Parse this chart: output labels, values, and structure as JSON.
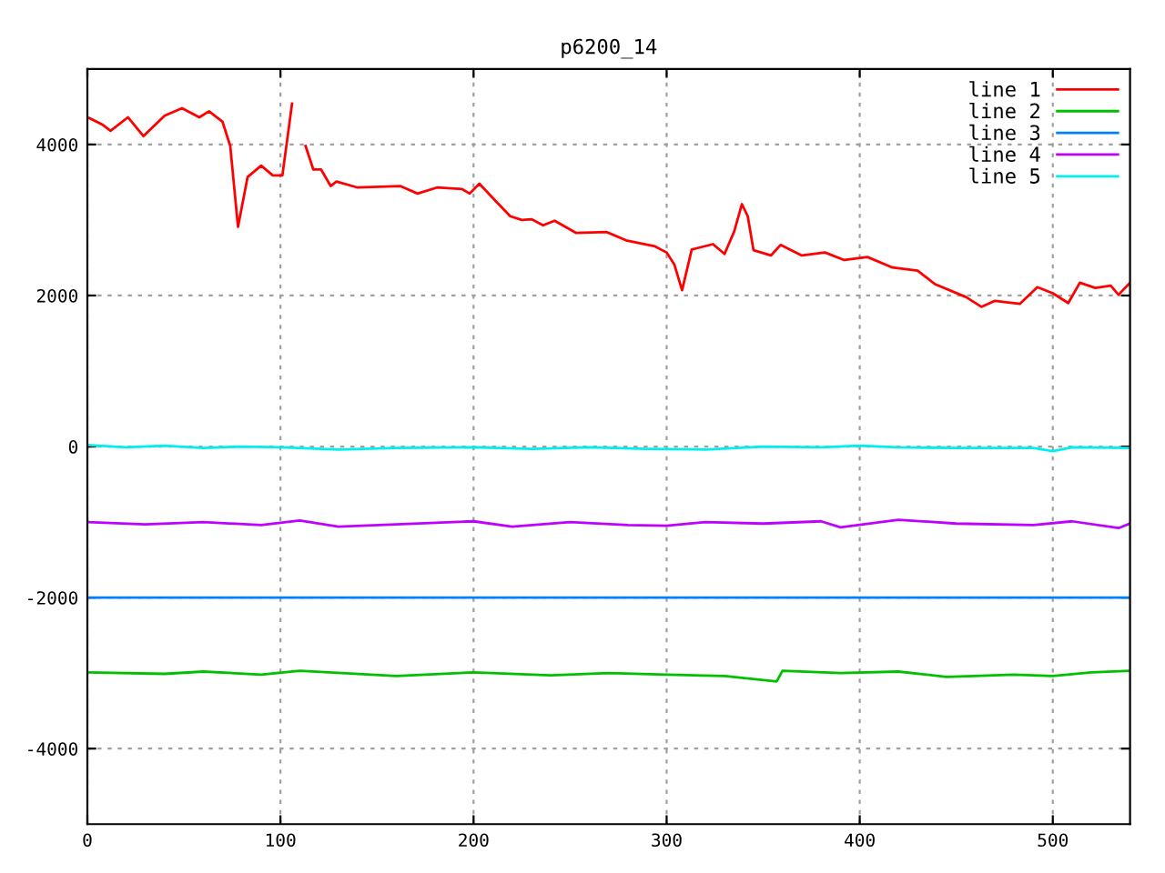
{
  "chart_data": {
    "type": "line",
    "title": "p6200_14",
    "xlim": [
      0,
      540
    ],
    "xticks": [
      0,
      100,
      200,
      300,
      400,
      500
    ],
    "ylim": [
      -5000,
      5000
    ],
    "yticks": [
      -4000,
      -2000,
      0,
      2000,
      4000
    ],
    "grid": true,
    "legend": "top right",
    "line_style": "solid",
    "marker": "none",
    "series": [
      {
        "name": "line 1",
        "color": "#ff0000",
        "x": [
          1,
          8,
          12,
          21,
          29,
          40,
          49,
          58,
          63,
          70,
          74,
          78,
          83,
          90,
          96,
          101,
          106,
          108,
          111,
          113,
          117,
          121,
          126,
          129,
          140,
          162,
          171,
          181,
          194,
          198,
          203,
          213,
          219,
          225,
          230,
          236,
          242,
          253,
          269,
          279,
          294,
          300,
          304,
          308,
          313,
          324,
          330,
          335,
          339,
          342,
          345,
          354,
          359,
          370,
          382,
          392,
          404,
          417,
          430,
          439,
          455,
          463,
          470,
          483,
          492,
          500,
          508,
          514,
          522,
          530,
          534,
          540
        ],
        "values": [
          4350,
          4260,
          4180,
          4360,
          4110,
          4380,
          4480,
          4360,
          4440,
          4300,
          3980,
          2910,
          3570,
          3720,
          3590,
          3590,
          4540,
          null,
          null,
          3980,
          3670,
          3670,
          3450,
          3510,
          3430,
          3450,
          3350,
          3430,
          3410,
          3350,
          3480,
          3210,
          3050,
          3000,
          3010,
          2930,
          2990,
          2830,
          2840,
          2730,
          2650,
          2570,
          2410,
          2070,
          2610,
          2680,
          2550,
          2850,
          3210,
          3050,
          2600,
          2530,
          2670,
          2530,
          2570,
          2470,
          2510,
          2370,
          2330,
          2150,
          1980,
          1850,
          1930,
          1890,
          2110,
          2030,
          1900,
          2170,
          2100,
          2130,
          2010,
          2170
        ]
      },
      {
        "name": "line 2",
        "color": "#00c000",
        "x": [
          0,
          40,
          60,
          90,
          110,
          160,
          200,
          240,
          270,
          300,
          330,
          357,
          360,
          390,
          420,
          445,
          480,
          500,
          520,
          540
        ],
        "values": [
          -2990,
          -3010,
          -2980,
          -3020,
          -2970,
          -3040,
          -2990,
          -3030,
          -3000,
          -3020,
          -3040,
          -3110,
          -2970,
          -3000,
          -2980,
          -3050,
          -3020,
          -3040,
          -2990,
          -2970
        ]
      },
      {
        "name": "line 3",
        "color": "#0080ff",
        "x": [
          0,
          540
        ],
        "values": [
          -2000,
          -2000
        ]
      },
      {
        "name": "line 4",
        "color": "#c000ff",
        "x": [
          0,
          30,
          60,
          90,
          110,
          130,
          160,
          200,
          220,
          250,
          280,
          300,
          320,
          350,
          380,
          390,
          420,
          450,
          490,
          510,
          534,
          540
        ],
        "values": [
          -1000,
          -1030,
          -1000,
          -1040,
          -980,
          -1060,
          -1030,
          -990,
          -1060,
          -1000,
          -1040,
          -1050,
          -1000,
          -1020,
          -990,
          -1070,
          -970,
          -1020,
          -1040,
          -990,
          -1080,
          -1020
        ]
      },
      {
        "name": "line 5",
        "color": "#00eeee",
        "x": [
          0,
          20,
          40,
          60,
          80,
          100,
          130,
          160,
          200,
          230,
          260,
          290,
          320,
          350,
          380,
          400,
          420,
          450,
          490,
          500,
          510,
          540
        ],
        "values": [
          20,
          -10,
          10,
          -20,
          0,
          -10,
          -40,
          -20,
          -10,
          -30,
          -10,
          -30,
          -40,
          0,
          -10,
          10,
          -10,
          -20,
          -20,
          -60,
          -10,
          -20
        ]
      }
    ]
  }
}
